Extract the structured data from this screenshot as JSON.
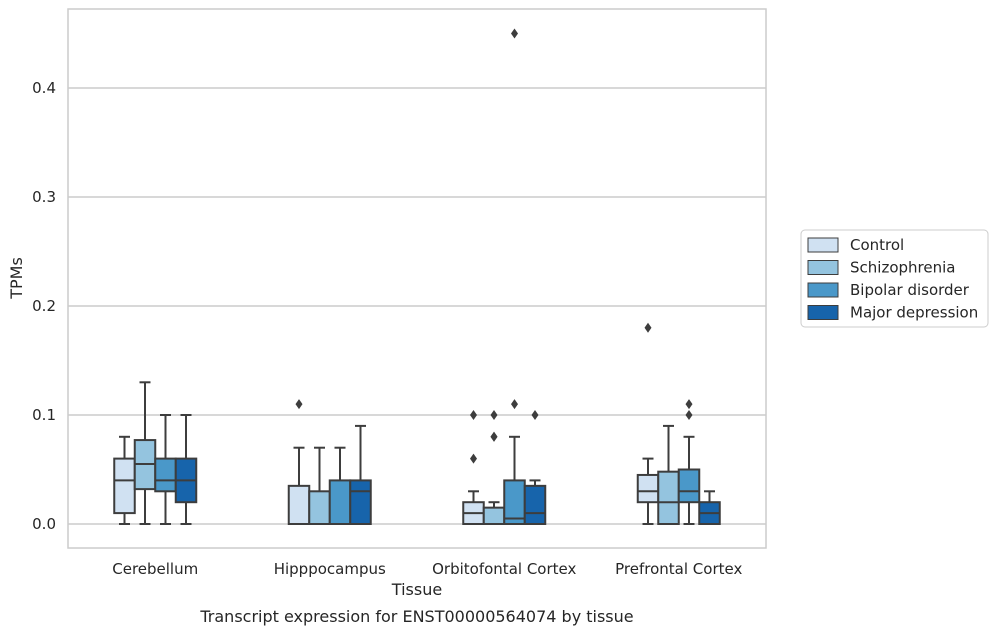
{
  "chart_data": {
    "type": "box",
    "title": "",
    "xlabel": "Tissue",
    "ylabel": "TPMs",
    "caption": "Transcript expression for ENST00000564074 by tissue",
    "ylim": [
      -0.022,
      0.475
    ],
    "yticks": [
      "0.0",
      "0.1",
      "0.2",
      "0.3",
      "0.4"
    ],
    "grid": "horizontal",
    "legend_position": "right",
    "categories": [
      "Cerebellum",
      "Hipppocampus",
      "Orbitofontal Cortex",
      "Prefrontal Cortex"
    ],
    "series": [
      {
        "name": "Control",
        "color": "#d0e1f2",
        "boxes": [
          {
            "whisker_low": 0.0,
            "q1": 0.01,
            "median": 0.04,
            "q3": 0.06,
            "whisker_high": 0.08,
            "outliers": []
          },
          {
            "whisker_low": 0.0,
            "q1": 0.0,
            "median": 0.0,
            "q3": 0.035,
            "whisker_high": 0.07,
            "outliers": [
              0.11
            ]
          },
          {
            "whisker_low": 0.0,
            "q1": 0.0,
            "median": 0.01,
            "q3": 0.02,
            "whisker_high": 0.03,
            "outliers": [
              0.06,
              0.1
            ]
          },
          {
            "whisker_low": 0.0,
            "q1": 0.02,
            "median": 0.03,
            "q3": 0.045,
            "whisker_high": 0.06,
            "outliers": [
              0.18
            ]
          }
        ]
      },
      {
        "name": "Schizophrenia",
        "color": "#94c4df",
        "boxes": [
          {
            "whisker_low": 0.0,
            "q1": 0.032,
            "median": 0.055,
            "q3": 0.077,
            "whisker_high": 0.13,
            "outliers": []
          },
          {
            "whisker_low": 0.0,
            "q1": 0.0,
            "median": 0.0,
            "q3": 0.03,
            "whisker_high": 0.07,
            "outliers": []
          },
          {
            "whisker_low": 0.0,
            "q1": 0.0,
            "median": 0.0,
            "q3": 0.015,
            "whisker_high": 0.02,
            "outliers": [
              0.08,
              0.08,
              0.1
            ]
          },
          {
            "whisker_low": 0.0,
            "q1": 0.0,
            "median": 0.02,
            "q3": 0.048,
            "whisker_high": 0.09,
            "outliers": []
          }
        ]
      },
      {
        "name": "Bipolar disorder",
        "color": "#4a98c9",
        "boxes": [
          {
            "whisker_low": 0.0,
            "q1": 0.03,
            "median": 0.04,
            "q3": 0.06,
            "whisker_high": 0.1,
            "outliers": []
          },
          {
            "whisker_low": 0.0,
            "q1": 0.0,
            "median": 0.0,
            "q3": 0.04,
            "whisker_high": 0.07,
            "outliers": []
          },
          {
            "whisker_low": 0.0,
            "q1": 0.0,
            "median": 0.005,
            "q3": 0.04,
            "whisker_high": 0.08,
            "outliers": [
              0.11,
              0.45
            ]
          },
          {
            "whisker_low": 0.0,
            "q1": 0.02,
            "median": 0.03,
            "q3": 0.05,
            "whisker_high": 0.08,
            "outliers": [
              0.1,
              0.11
            ]
          }
        ]
      },
      {
        "name": "Major depression",
        "color": "#1764ab",
        "boxes": [
          {
            "whisker_low": 0.0,
            "q1": 0.02,
            "median": 0.04,
            "q3": 0.06,
            "whisker_high": 0.1,
            "outliers": []
          },
          {
            "whisker_low": 0.0,
            "q1": 0.0,
            "median": 0.03,
            "q3": 0.04,
            "whisker_high": 0.09,
            "outliers": []
          },
          {
            "whisker_low": 0.0,
            "q1": 0.0,
            "median": 0.01,
            "q3": 0.035,
            "whisker_high": 0.04,
            "outliers": [
              0.1
            ]
          },
          {
            "whisker_low": 0.0,
            "q1": 0.0,
            "median": 0.01,
            "q3": 0.02,
            "whisker_high": 0.03,
            "outliers": []
          }
        ]
      }
    ]
  }
}
